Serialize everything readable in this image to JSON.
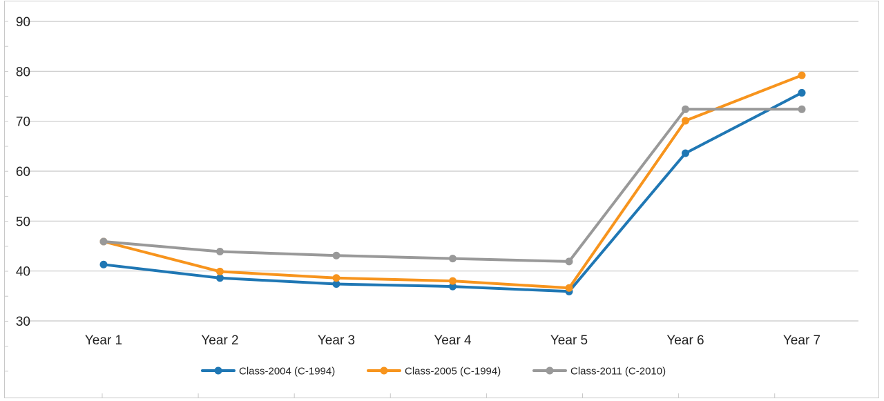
{
  "chart_data": {
    "type": "line",
    "title": "",
    "xlabel": "",
    "ylabel": "",
    "categories": [
      "Year 1",
      "Year 2",
      "Year 3",
      "Year 4",
      "Year 5",
      "Year 6",
      "Year 7"
    ],
    "ylim": [
      30,
      90
    ],
    "yticks": [
      30,
      40,
      50,
      60,
      70,
      80,
      90
    ],
    "grid": "horizontal",
    "legend_position": "bottom",
    "series": [
      {
        "name": "Class-2004 (C-1994)",
        "color": "#1f77b4",
        "values": [
          41.3,
          38.6,
          37.4,
          36.9,
          35.9,
          63.6,
          75.7
        ]
      },
      {
        "name": "Class-2005 (C-1994)",
        "color": "#f7941d",
        "values": [
          45.9,
          39.9,
          38.6,
          38.0,
          36.6,
          70.1,
          79.2
        ]
      },
      {
        "name": "Class-2011 (C-2010)",
        "color": "#999999",
        "values": [
          45.9,
          43.9,
          43.1,
          42.5,
          41.9,
          72.4,
          72.4
        ]
      }
    ]
  }
}
